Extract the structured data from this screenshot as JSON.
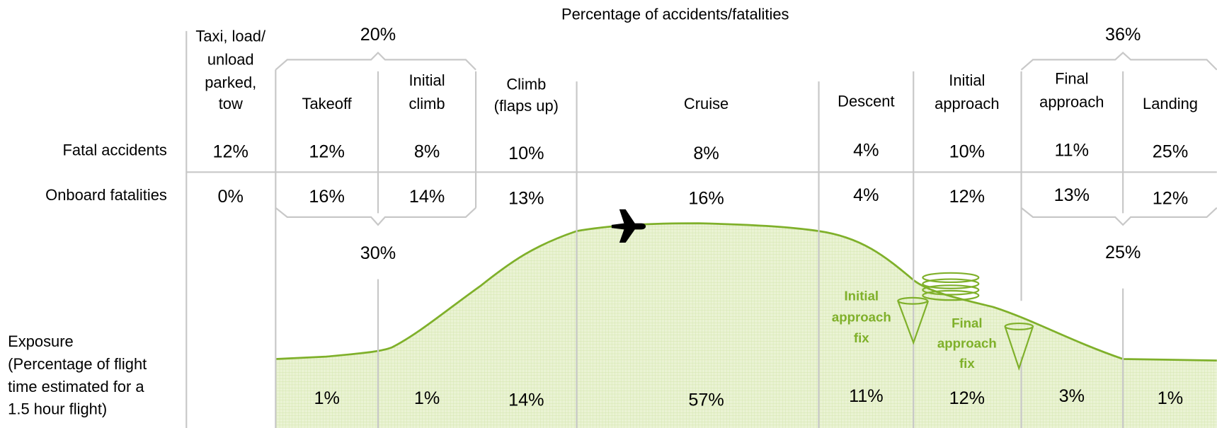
{
  "header": {
    "title": "Percentage of accidents/fatalities"
  },
  "row_labels": {
    "fatal": "Fatal accidents",
    "onboard": "Onboard fatalities",
    "exposure": [
      "Exposure",
      "(Percentage of flight",
      "time estimated for a",
      "1.5 hour flight)"
    ]
  },
  "phases": [
    {
      "name": [
        "Taxi, load/",
        "unload",
        "parked,",
        "tow"
      ],
      "fatal": "12%",
      "onboard": "0%"
    },
    {
      "name": [
        "Takeoff"
      ],
      "fatal": "12%",
      "onboard": "16%",
      "exposure": "1%"
    },
    {
      "name": [
        "Initial",
        "climb"
      ],
      "fatal": "8%",
      "onboard": "14%",
      "exposure": "1%"
    },
    {
      "name": [
        "Climb",
        "(flaps up)"
      ],
      "fatal": "10%",
      "onboard": "13%",
      "exposure": "14%"
    },
    {
      "name": [
        "Cruise"
      ],
      "fatal": "8%",
      "onboard": "16%",
      "exposure": "57%"
    },
    {
      "name": [
        "Descent"
      ],
      "fatal": "4%",
      "onboard": "4%",
      "exposure": "11%"
    },
    {
      "name": [
        "Initial",
        "approach"
      ],
      "fatal": "10%",
      "onboard": "12%",
      "exposure": "12%"
    },
    {
      "name": [
        "Final",
        "approach"
      ],
      "fatal": "11%",
      "onboard": "13%",
      "exposure": "3%"
    },
    {
      "name": [
        "Landing"
      ],
      "fatal": "25%",
      "onboard": "12%",
      "exposure": "1%"
    }
  ],
  "groups": {
    "top_left": "20%",
    "top_right": "36%",
    "bottom_left": "30%",
    "bottom_right": "25%"
  },
  "annotations": {
    "initial_fix": [
      "Initial",
      "approach",
      "fix"
    ],
    "final_fix": [
      "Final",
      "approach",
      "fix"
    ]
  }
}
